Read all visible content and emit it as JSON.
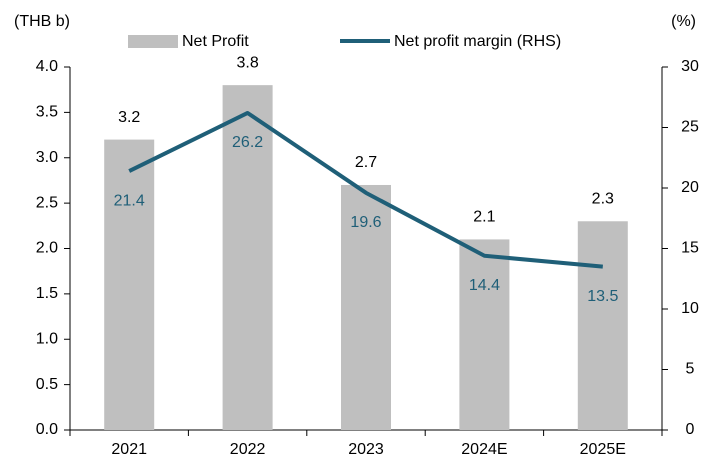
{
  "chart_data": {
    "type": "bar",
    "y_label": "(THB b)",
    "y2_label": "(%)",
    "categories": [
      "2021",
      "2022",
      "2023",
      "2024E",
      "2025E"
    ],
    "series": [
      {
        "name": "Net Profit",
        "type": "bar",
        "color": "#bfbfbf",
        "values": [
          3.2,
          3.8,
          2.7,
          2.1,
          2.3
        ]
      },
      {
        "name": "Net profit margin (RHS)",
        "type": "line",
        "axis": "y2",
        "color": "#1f5f78",
        "values": [
          21.4,
          26.2,
          19.6,
          14.4,
          13.5
        ]
      }
    ],
    "ylim": [
      0,
      4
    ],
    "yticks": [
      {
        "value": 0,
        "label": "0.0"
      },
      {
        "value": 0.5,
        "label": "0.5"
      },
      {
        "value": 1,
        "label": "1.0"
      },
      {
        "value": 1.5,
        "label": "1.5"
      },
      {
        "value": 2,
        "label": "2.0"
      },
      {
        "value": 2.5,
        "label": "2.5"
      },
      {
        "value": 3,
        "label": "3.0"
      },
      {
        "value": 3.5,
        "label": "3.5"
      },
      {
        "value": 4,
        "label": "4.0"
      }
    ],
    "y2lim": [
      0,
      30
    ],
    "y2ticks": [
      0,
      5,
      10,
      15,
      20,
      25,
      30
    ],
    "grid": false,
    "legend": "top"
  }
}
